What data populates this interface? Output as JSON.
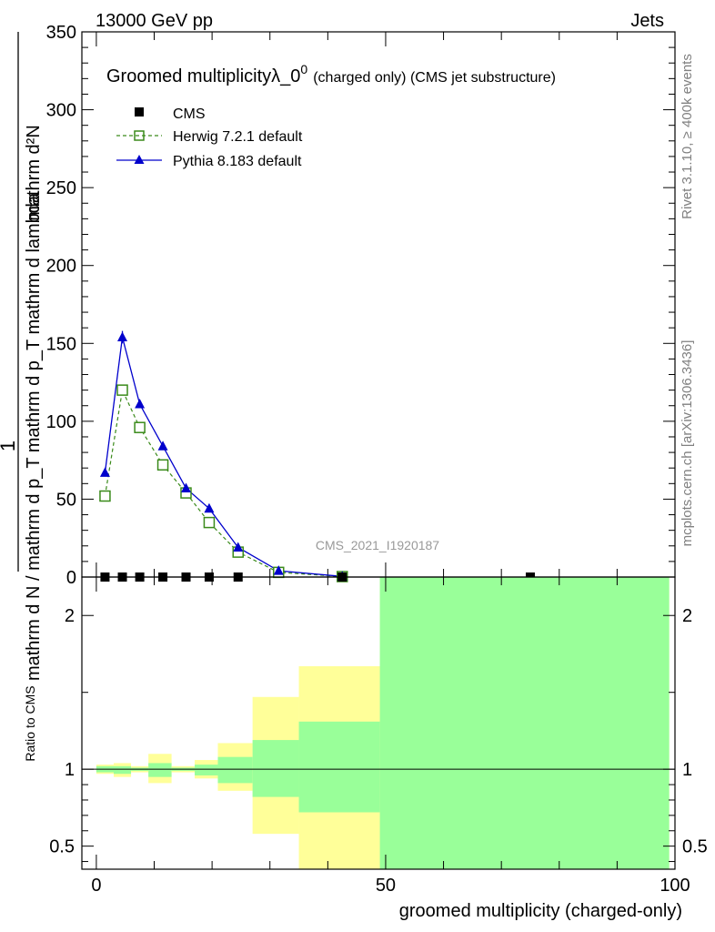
{
  "header": {
    "energy_label": "13000 GeV pp",
    "category": "Jets",
    "plot_title": "Groomed multiplicityλ_0",
    "plot_title_sup": "0",
    "plot_title_suffix": "(charged only) (CMS jet substructure)",
    "analysis_id": "CMS_2021_I1920187",
    "side_rivet": "Rivet 3.1.10, ≥ 400k events",
    "side_site": "mcplots.cern.ch [arXiv:1306.3436]"
  },
  "colors": {
    "herwig": "#3a8a1a",
    "pythia": "#0000cc",
    "band_inner": "#99ff99",
    "band_outer": "#ffff99",
    "cms": "#000000"
  },
  "chart_data": [
    {
      "type": "line",
      "panel": "main",
      "title": "Groomed multiplicityλ_0^0 (charged only) (CMS jet substructure)",
      "ylabel_fraction_num": "1",
      "ylabel_denominator": "mathrm d N / mathrm d p_T mathrm d p_T mathrm d lambda",
      "ylabel_numerator": "mathrm d²N",
      "ylim": [
        0,
        350
      ],
      "xlim": [
        -2.5,
        100
      ],
      "y_ticks": [
        0,
        50,
        100,
        150,
        200,
        250,
        300,
        350
      ],
      "legend_position": "top-left",
      "series": [
        {
          "name": "CMS",
          "style": "filled-square",
          "x": [
            1.5,
            4.5,
            7.5,
            11.5,
            15.5,
            19.5,
            24.5,
            42.5,
            75
          ],
          "y": [
            0,
            0,
            0,
            0,
            0,
            0,
            0,
            0,
            0
          ]
        },
        {
          "name": "Herwig 7.2.1 default",
          "style": "dashed-open-square",
          "x": [
            1.5,
            4.5,
            7.5,
            11.5,
            15.5,
            19.5,
            24.5,
            31.5,
            42.5
          ],
          "y": [
            52,
            120,
            96,
            72,
            54,
            35,
            16,
            3,
            0.3
          ]
        },
        {
          "name": "Pythia 8.183 default",
          "style": "solid-triangle",
          "x": [
            1.5,
            4.5,
            7.5,
            11.5,
            15.5,
            19.5,
            24.5,
            31.5,
            42.5
          ],
          "y": [
            67,
            154,
            111,
            84,
            57,
            44,
            19,
            4,
            0.4
          ],
          "err": [
            0,
            4,
            0,
            0,
            0,
            0,
            0,
            0,
            0
          ]
        }
      ]
    },
    {
      "type": "area",
      "panel": "ratio",
      "ylabel": "Ratio to CMS",
      "xlabel": "groomed multiplicity (charged-only)",
      "ylim": [
        0.35,
        2.25
      ],
      "xlim": [
        -2.5,
        100
      ],
      "x_ticks": [
        0,
        50,
        100
      ],
      "y_ticks": [
        0.5,
        1,
        2
      ],
      "reference_line": 1,
      "bins": [
        {
          "x0": 0,
          "x1": 3,
          "inner_lo": 0.98,
          "inner_hi": 1.02,
          "outer_lo": 0.97,
          "outer_hi": 1.03
        },
        {
          "x0": 3,
          "x1": 6,
          "inner_lo": 0.97,
          "inner_hi": 1.02,
          "outer_lo": 0.95,
          "outer_hi": 1.04
        },
        {
          "x0": 6,
          "x1": 9,
          "inner_lo": 0.99,
          "inner_hi": 1.01,
          "outer_lo": 0.98,
          "outer_hi": 1.02
        },
        {
          "x0": 9,
          "x1": 13,
          "inner_lo": 0.95,
          "inner_hi": 1.04,
          "outer_lo": 0.91,
          "outer_hi": 1.1
        },
        {
          "x0": 13,
          "x1": 17,
          "inner_lo": 0.99,
          "inner_hi": 1.01,
          "outer_lo": 0.98,
          "outer_hi": 1.02
        },
        {
          "x0": 17,
          "x1": 21,
          "inner_lo": 0.96,
          "inner_hi": 1.03,
          "outer_lo": 0.94,
          "outer_hi": 1.06
        },
        {
          "x0": 21,
          "x1": 27,
          "inner_lo": 0.91,
          "inner_hi": 1.08,
          "outer_lo": 0.86,
          "outer_hi": 1.17
        },
        {
          "x0": 27,
          "x1": 35,
          "inner_lo": 0.82,
          "inner_hi": 1.19,
          "outer_lo": 0.58,
          "outer_hi": 1.47
        },
        {
          "x0": 35,
          "x1": 49,
          "inner_lo": 0.72,
          "inner_hi": 1.31,
          "outer_lo": 0.35,
          "outer_hi": 1.67
        },
        {
          "x0": 49,
          "x1": 99,
          "inner_lo": 0.35,
          "inner_hi": 2.25,
          "outer_lo": 0.35,
          "outer_hi": 2.25
        }
      ]
    }
  ]
}
